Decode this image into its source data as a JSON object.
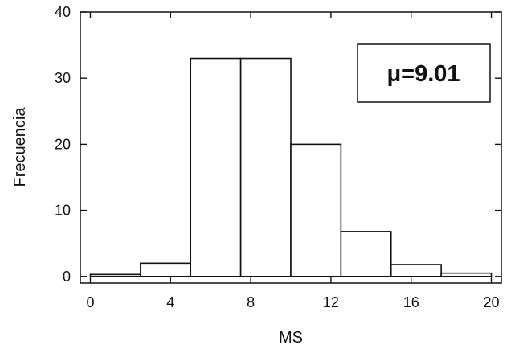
{
  "chart_data": {
    "type": "bar",
    "bins": [
      {
        "start": 0,
        "end": 2.5,
        "value": 0.3
      },
      {
        "start": 2.5,
        "end": 5,
        "value": 2
      },
      {
        "start": 5,
        "end": 7.5,
        "value": 33
      },
      {
        "start": 7.5,
        "end": 10,
        "value": 33
      },
      {
        "start": 10,
        "end": 12.5,
        "value": 20
      },
      {
        "start": 12.5,
        "end": 15,
        "value": 6.8
      },
      {
        "start": 15,
        "end": 17.5,
        "value": 1.8
      },
      {
        "start": 17.5,
        "end": 20,
        "value": 0.5
      }
    ],
    "xlabel": "MS",
    "ylabel": "Frecuencia",
    "xlim": [
      -0.5,
      20.5
    ],
    "ylim": [
      -1,
      40
    ],
    "x_ticks": [
      "0",
      "4",
      "8",
      "12",
      "16",
      "20"
    ],
    "y_ticks": [
      "0",
      "10",
      "20",
      "30",
      "40"
    ],
    "annotation": "μ=9.01",
    "grid": false,
    "colors": {
      "bar_fill": "#ffffff",
      "stroke": "#111111"
    }
  }
}
